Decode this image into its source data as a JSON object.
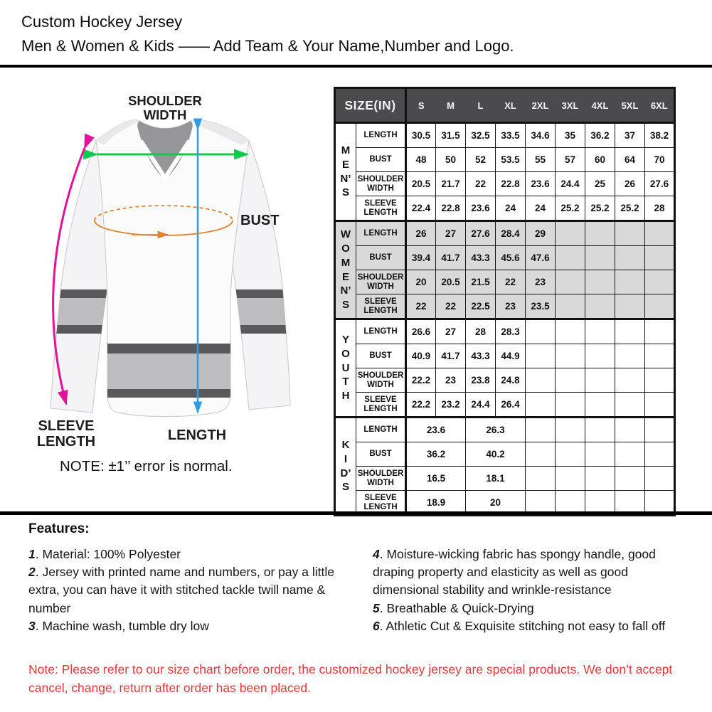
{
  "theme": {
    "table_header_bg": "#4b4b4d",
    "women_row_bg": "#d9d9d9",
    "note_red": "#e03c3c"
  },
  "header": {
    "title_line1": "Custom Hockey Jersey",
    "title_line2": "Men & Women & Kids —— Add Team & Your Name,Number and Logo."
  },
  "diagram": {
    "labels": {
      "shoulder_line1": "SHOULDER",
      "shoulder_line2": "WIDTH",
      "bust": "BUST",
      "sleeve_line1": "SLEEVE",
      "sleeve_line2": "LENGTH",
      "length": "LENGTH"
    },
    "note": "NOTE:  ±1’’ error is normal.",
    "colors": {
      "shoulder_arrow": "#12c94f",
      "length_arrow": "#2f9ce8",
      "sleeve_arrow": "#e5109b",
      "bust_arrow": "#de8432"
    },
    "jersey_colors": {
      "stripe_dark": "#59595c",
      "stripe_light": "#bdbdc0",
      "collar": "#95959a"
    }
  },
  "size_chart": {
    "title": "SIZE(IN)",
    "columns": [
      "S",
      "M",
      "L",
      "XL",
      "2XL",
      "3XL",
      "4XL",
      "5XL",
      "6XL"
    ],
    "sections": [
      {
        "group": "MEN'S",
        "letters": [
          "M",
          "E",
          "N’",
          "S"
        ],
        "shaded": false,
        "rows": [
          {
            "label": "LENGTH",
            "cells": [
              {
                "v": "30.5"
              },
              {
                "v": "31.5"
              },
              {
                "v": "32.5"
              },
              {
                "v": "33.5"
              },
              {
                "v": "34.6"
              },
              {
                "v": "35"
              },
              {
                "v": "36.2"
              },
              {
                "v": "37"
              },
              {
                "v": "38.2"
              }
            ]
          },
          {
            "label": "BUST",
            "cells": [
              {
                "v": "48"
              },
              {
                "v": "50"
              },
              {
                "v": "52"
              },
              {
                "v": "53.5"
              },
              {
                "v": "55"
              },
              {
                "v": "57"
              },
              {
                "v": "60"
              },
              {
                "v": "64"
              },
              {
                "v": "70"
              }
            ]
          },
          {
            "label": "SHOULDER WIDTH",
            "cells": [
              {
                "v": "20.5"
              },
              {
                "v": "21.7"
              },
              {
                "v": "22"
              },
              {
                "v": "22.8"
              },
              {
                "v": "23.6"
              },
              {
                "v": "24.4"
              },
              {
                "v": "25"
              },
              {
                "v": "26"
              },
              {
                "v": "27.6"
              }
            ]
          },
          {
            "label": "SLEEVE LENGTH",
            "cells": [
              {
                "v": "22.4"
              },
              {
                "v": "22.8"
              },
              {
                "v": "23.6"
              },
              {
                "v": "24"
              },
              {
                "v": "24"
              },
              {
                "v": "25.2"
              },
              {
                "v": "25.2"
              },
              {
                "v": "25.2"
              },
              {
                "v": "28"
              }
            ]
          }
        ]
      },
      {
        "group": "WOMEN'S",
        "letters": [
          "W",
          "O",
          "M",
          "E",
          "N’",
          "S"
        ],
        "shaded": true,
        "rows": [
          {
            "label": "LENGTH",
            "cells": [
              {
                "v": "26"
              },
              {
                "v": "27"
              },
              {
                "v": "27.6"
              },
              {
                "v": "28.4"
              },
              {
                "v": "29"
              },
              {
                "v": ""
              },
              {
                "v": ""
              },
              {
                "v": ""
              },
              {
                "v": ""
              }
            ]
          },
          {
            "label": "BUST",
            "cells": [
              {
                "v": "39.4"
              },
              {
                "v": "41.7"
              },
              {
                "v": "43.3"
              },
              {
                "v": "45.6"
              },
              {
                "v": "47.6"
              },
              {
                "v": ""
              },
              {
                "v": ""
              },
              {
                "v": ""
              },
              {
                "v": ""
              }
            ]
          },
          {
            "label": "SHOULDER WIDTH",
            "cells": [
              {
                "v": "20"
              },
              {
                "v": "20.5"
              },
              {
                "v": "21.5"
              },
              {
                "v": "22"
              },
              {
                "v": "23"
              },
              {
                "v": ""
              },
              {
                "v": ""
              },
              {
                "v": ""
              },
              {
                "v": ""
              }
            ]
          },
          {
            "label": "SLEEVE LENGTH",
            "cells": [
              {
                "v": "22"
              },
              {
                "v": "22"
              },
              {
                "v": "22.5"
              },
              {
                "v": "23"
              },
              {
                "v": "23.5"
              },
              {
                "v": ""
              },
              {
                "v": ""
              },
              {
                "v": ""
              },
              {
                "v": ""
              }
            ]
          }
        ]
      },
      {
        "group": "YOUTH",
        "letters": [
          "Y",
          "O",
          "U",
          "T",
          "H"
        ],
        "shaded": false,
        "rows": [
          {
            "label": "LENGTH",
            "cells": [
              {
                "v": "26.6"
              },
              {
                "v": "27"
              },
              {
                "v": "28"
              },
              {
                "v": "28.3"
              },
              {
                "v": ""
              },
              {
                "v": ""
              },
              {
                "v": ""
              },
              {
                "v": ""
              },
              {
                "v": ""
              }
            ]
          },
          {
            "label": "BUST",
            "cells": [
              {
                "v": "40.9"
              },
              {
                "v": "41.7"
              },
              {
                "v": "43.3"
              },
              {
                "v": "44.9"
              },
              {
                "v": ""
              },
              {
                "v": ""
              },
              {
                "v": ""
              },
              {
                "v": ""
              },
              {
                "v": ""
              }
            ]
          },
          {
            "label": "SHOULDER WIDTH",
            "cells": [
              {
                "v": "22.2"
              },
              {
                "v": "23"
              },
              {
                "v": "23.8"
              },
              {
                "v": "24.8"
              },
              {
                "v": ""
              },
              {
                "v": ""
              },
              {
                "v": ""
              },
              {
                "v": ""
              },
              {
                "v": ""
              }
            ]
          },
          {
            "label": "SLEEVE LENGTH",
            "cells": [
              {
                "v": "22.2"
              },
              {
                "v": "23.2"
              },
              {
                "v": "24.4"
              },
              {
                "v": "26.4"
              },
              {
                "v": ""
              },
              {
                "v": ""
              },
              {
                "v": ""
              },
              {
                "v": ""
              },
              {
                "v": ""
              }
            ]
          }
        ]
      },
      {
        "group": "KID'S",
        "letters": [
          "K",
          "I",
          "D’",
          "S"
        ],
        "shaded": false,
        "rows": [
          {
            "label": "LENGTH",
            "cells": [
              {
                "v": "23.6",
                "span": 2
              },
              {
                "v": "26.3",
                "span": 2
              },
              {
                "v": ""
              },
              {
                "v": ""
              },
              {
                "v": ""
              },
              {
                "v": ""
              },
              {
                "v": ""
              }
            ]
          },
          {
            "label": "BUST",
            "cells": [
              {
                "v": "36.2",
                "span": 2
              },
              {
                "v": "40.2",
                "span": 2
              },
              {
                "v": ""
              },
              {
                "v": ""
              },
              {
                "v": ""
              },
              {
                "v": ""
              },
              {
                "v": ""
              }
            ]
          },
          {
            "label": "SHOULDER WIDTH",
            "cells": [
              {
                "v": "16.5",
                "span": 2
              },
              {
                "v": "18.1",
                "span": 2
              },
              {
                "v": ""
              },
              {
                "v": ""
              },
              {
                "v": ""
              },
              {
                "v": ""
              },
              {
                "v": ""
              }
            ]
          },
          {
            "label": "SLEEVE LENGTH",
            "cells": [
              {
                "v": "18.9",
                "span": 2
              },
              {
                "v": "20",
                "span": 2
              },
              {
                "v": ""
              },
              {
                "v": ""
              },
              {
                "v": ""
              },
              {
                "v": ""
              },
              {
                "v": ""
              }
            ]
          }
        ]
      }
    ]
  },
  "features": {
    "title": "Features:",
    "separator": ". ",
    "left": [
      {
        "num": "1",
        "text": "Material: 100% Polyester"
      },
      {
        "num": "2",
        "text": "Jersey with printed name and numbers, or pay a little extra, you can have it with stitched tackle twill name & number"
      },
      {
        "num": "3",
        "text": "Machine wash, tumble dry low"
      }
    ],
    "right": [
      {
        "num": "4",
        "text": "Moisture-wicking fabric has spongy handle, good draping property and elasticity as well as good dimensional stability and wrinkle-resistance"
      },
      {
        "num": "5",
        "text": "Breathable & Quick-Drying"
      },
      {
        "num": "6",
        "text": "Athletic Cut & Exquisite stitching not easy to fall off"
      }
    ]
  },
  "bottom_note": {
    "text": "Note: Please refer to our size chart before order, the customized hockey jersey are special products. We don’t accept cancel, change, return after order has been placed."
  }
}
